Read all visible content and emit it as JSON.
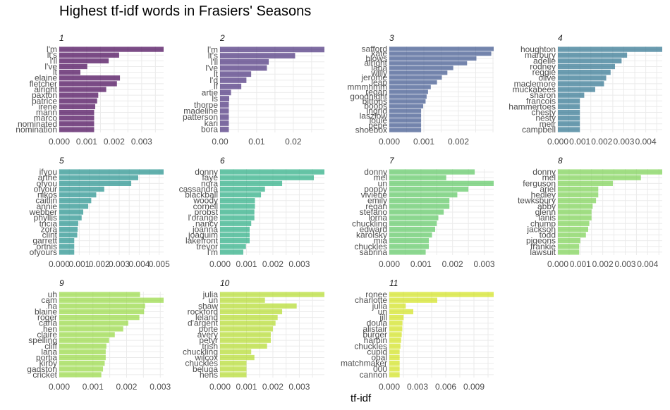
{
  "chart_data": {
    "type": "bar",
    "orientation": "horizontal",
    "title": "Highest tf-idf words in Frasiers' Seasons",
    "xlabel": "tf-idf",
    "ylabel": "",
    "grid": true,
    "legend": "none",
    "panels": [
      {
        "name": "1",
        "color": "#440154",
        "xlim": [
          0,
          0.0038
        ],
        "xticks": [
          0,
          0.001,
          0.002,
          0.003
        ],
        "xtick_labels": [
          "0.000",
          "0.001",
          "0.002",
          "0.003"
        ],
        "categories": [
          "l'm",
          "lt's",
          "l'll",
          "l've",
          "lt",
          "elaine",
          "fletcher",
          "alright",
          "paxton",
          "patrice",
          "irene",
          "mann",
          "marco",
          "nominated",
          "nomination"
        ],
        "values": [
          0.0038,
          0.00218,
          0.0018,
          0.00102,
          0.00077,
          0.00221,
          0.0021,
          0.00171,
          0.00142,
          0.00138,
          0.00131,
          0.00127,
          0.00127,
          0.00127,
          0.00127
        ]
      },
      {
        "name": "2",
        "color": "#472d7b",
        "xlim": [
          0,
          0.0285
        ],
        "xticks": [
          0,
          0.01,
          0.02
        ],
        "xtick_labels": [
          "0.00",
          "0.01",
          "0.02"
        ],
        "categories": [
          "l'm",
          "lt's",
          "l'll",
          "l've",
          "lt",
          "l'd",
          "lf",
          "artie",
          "ls",
          "thorpe",
          "madeline",
          "patterson",
          "kari",
          "bora"
        ],
        "values": [
          0.0285,
          0.0205,
          0.0133,
          0.0128,
          0.0085,
          0.0072,
          0.0058,
          0.003,
          0.0025,
          0.0024,
          0.0024,
          0.0024,
          0.0024,
          0.0024
        ]
      },
      {
        "name": "3",
        "color": "#3b528b",
        "xlim": [
          0,
          0.00302
        ],
        "xticks": [
          0,
          0.001,
          0.002
        ],
        "xtick_labels": [
          "0.000",
          "0.001",
          "0.002"
        ],
        "categories": [
          "safford",
          "kate",
          "blows",
          "alright",
          "lana",
          "willy",
          "jerome",
          "leap",
          "mmmhmm",
          "regan",
          "goodnight",
          "bittons",
          "boobs",
          "ingrid",
          "laszlow",
          "louie",
          "pepe",
          "shoebox"
        ],
        "values": [
          0.00302,
          0.00295,
          0.00252,
          0.00225,
          0.00185,
          0.00168,
          0.00152,
          0.00138,
          0.0012,
          0.00112,
          0.00108,
          0.00105,
          0.00098,
          0.00092,
          0.00092,
          0.00092,
          0.00092,
          0.00092
        ]
      },
      {
        "name": "4",
        "color": "#2c728e",
        "xlim": [
          0,
          0.00475
        ],
        "xticks": [
          0,
          0.001,
          0.002,
          0.003,
          0.004
        ],
        "xtick_labels": [
          "0.000",
          "0.001",
          "0.002",
          "0.003",
          "0.004"
        ],
        "categories": [
          "houghton",
          "marbury",
          "adelle",
          "rodney",
          "reggie",
          "olive",
          "maclemore",
          "muckabees",
          "sharon",
          "francois",
          "hammertoes",
          "chesty",
          "nesty",
          "meir",
          "campbell"
        ],
        "values": [
          0.00475,
          0.00315,
          0.0029,
          0.0026,
          0.0024,
          0.0022,
          0.0021,
          0.0017,
          0.0012,
          0.001,
          0.001,
          0.001,
          0.001,
          0.001,
          0.001
        ]
      },
      {
        "name": "5",
        "color": "#21908c",
        "xlim": [
          0,
          0.00522
        ],
        "xticks": [
          0,
          0.001,
          0.002,
          0.003,
          0.004,
          0.005
        ],
        "xtick_labels": [
          "0.000",
          "0.001",
          "0.002",
          "0.003",
          "0.004",
          "0.005"
        ],
        "categories": [
          "ifyou",
          "arthe",
          "ofyou",
          "ofyour",
          "nikos",
          "caitlin",
          "annie",
          "webber",
          "phyllis",
          "tricia",
          "zora",
          "clint",
          "garrett",
          "ortnis",
          "ofyours"
        ],
        "values": [
          0.00522,
          0.00395,
          0.0036,
          0.00225,
          0.00185,
          0.0016,
          0.00145,
          0.0012,
          0.00112,
          0.00095,
          0.00092,
          0.0009,
          0.00075,
          0.00075,
          0.00075
        ]
      },
      {
        "name": "6",
        "color": "#27ad81",
        "xlim": [
          0,
          0.00395
        ],
        "xticks": [
          0,
          0.001,
          0.002,
          0.003
        ],
        "xtick_labels": [
          "0.000",
          "0.001",
          "0.002",
          "0.003"
        ],
        "categories": [
          "donny",
          "faye",
          "nora",
          "cassandra",
          "blackball",
          "woody",
          "cornell",
          "probst",
          "l'orange",
          "nancy",
          "joanna",
          "joaquim",
          "lakefront",
          "trevor",
          "l'm"
        ],
        "values": [
          0.00395,
          0.00355,
          0.00235,
          0.0017,
          0.00155,
          0.00132,
          0.00132,
          0.0013,
          0.0013,
          0.00118,
          0.00112,
          0.00112,
          0.00112,
          0.00098,
          0.00088
        ]
      },
      {
        "name": "7",
        "color": "#5dc863",
        "xlim": [
          0,
          0.0033
        ],
        "xticks": [
          0,
          0.001,
          0.002,
          0.003
        ],
        "xtick_labels": [
          "0.000",
          "0.001",
          "0.002",
          "0.003"
        ],
        "categories": [
          "donny",
          "mel",
          "un",
          "poppy",
          "viviene",
          "emily",
          "regan",
          "stefano",
          "lorna",
          "chuckling",
          "edward",
          "karolsky",
          "mia",
          "chuckles",
          "sabrina"
        ],
        "values": [
          0.0027,
          0.0018,
          0.0033,
          0.0025,
          0.00215,
          0.0019,
          0.0019,
          0.00172,
          0.00155,
          0.0015,
          0.00145,
          0.00135,
          0.00125,
          0.00125,
          0.00115
        ]
      },
      {
        "name": "8",
        "color": "#7ad151",
        "xlim": [
          0,
          0.00465
        ],
        "xticks": [
          0,
          0.001,
          0.002,
          0.003,
          0.004
        ],
        "xtick_labels": [
          "0.000",
          "0.001",
          "0.002",
          "0.003",
          "0.004"
        ],
        "categories": [
          "donny",
          "mel",
          "ferguson",
          "ariel",
          "hedley",
          "tewksbury",
          "abby",
          "glenn",
          "lanis",
          "chump",
          "jackson",
          "todd",
          "pigeons",
          "frankie",
          "lawsuit"
        ],
        "values": [
          0.00465,
          0.0037,
          0.00245,
          0.0018,
          0.0018,
          0.0017,
          0.00155,
          0.0015,
          0.0015,
          0.0014,
          0.00135,
          0.00125,
          0.001,
          0.00095,
          0.00095
        ]
      },
      {
        "name": "9",
        "color": "#95d840",
        "xlim": [
          0,
          0.0031
        ],
        "xticks": [
          0,
          0.001,
          0.002,
          0.003
        ],
        "xtick_labels": [
          "0.000",
          "0.001",
          "0.002",
          "0.003"
        ],
        "categories": [
          "uh",
          "cam",
          "ha",
          "blaine",
          "roger",
          "carla",
          "hen",
          "claire",
          "spelling",
          "cliff",
          "lana",
          "portia",
          "kirby",
          "gadston",
          "cricket"
        ],
        "values": [
          0.0024,
          0.0031,
          0.00255,
          0.00252,
          0.00238,
          0.00205,
          0.0019,
          0.00165,
          0.00148,
          0.0014,
          0.00138,
          0.00138,
          0.00135,
          0.0013,
          0.00125
        ]
      },
      {
        "name": "10",
        "color": "#b3dc2b",
        "xlim": [
          0,
          0.00395
        ],
        "xticks": [
          0,
          0.001,
          0.002,
          0.003
        ],
        "xtick_labels": [
          "0.000",
          "0.001",
          "0.002",
          "0.003"
        ],
        "categories": [
          "julia",
          "un",
          "shaw",
          "rockford",
          "leland",
          "d'argent",
          "porte",
          "avery",
          "petyr",
          "trish",
          "chuckling",
          "wilcox",
          "chuckles",
          "beluga",
          "hens"
        ],
        "values": [
          0.00395,
          0.0017,
          0.0029,
          0.00235,
          0.00218,
          0.0021,
          0.002,
          0.00192,
          0.00192,
          0.00178,
          0.00118,
          0.0013,
          0.001,
          0.001,
          0.001
        ]
      },
      {
        "name": "11",
        "color": "#d2e21b",
        "xlim": [
          0,
          0.0111
        ],
        "xticks": [
          0,
          0.003,
          0.006,
          0.009
        ],
        "xtick_labels": [
          "0.000",
          "0.003",
          "0.006",
          "0.009"
        ],
        "categories": [
          "ronee",
          "charlotte",
          "julia",
          "un",
          "jill",
          "doula",
          "alistair",
          "burger",
          "harbin",
          "chuckles",
          "cupid",
          "opal",
          "matchmaker",
          "000",
          "cannon"
        ],
        "values": [
          0.0111,
          0.0051,
          0.00175,
          0.00255,
          0.00152,
          0.0014,
          0.00138,
          0.00132,
          0.00125,
          0.00118,
          0.0011,
          0.0011,
          0.0011,
          0.0011,
          0.0011
        ]
      }
    ]
  }
}
